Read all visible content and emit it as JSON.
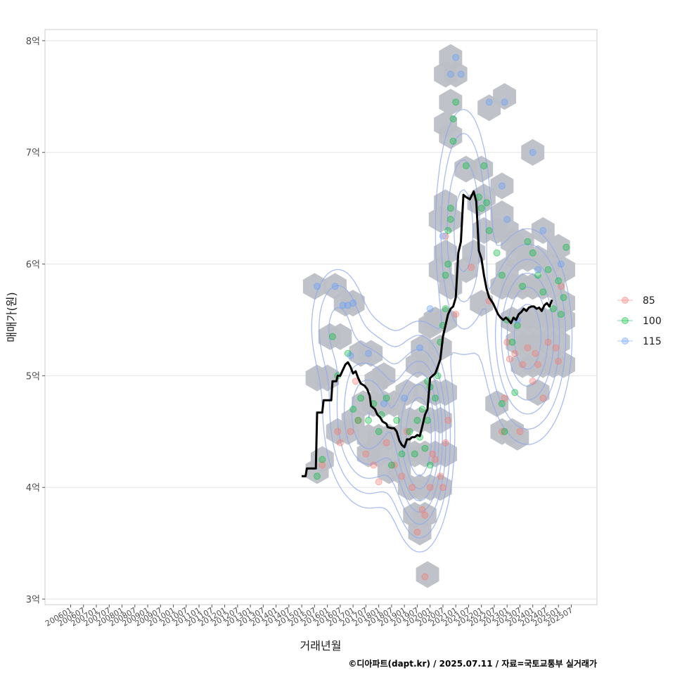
{
  "chart_data": {
    "type": "scatter",
    "title": "",
    "xlabel": "거래년월",
    "ylabel": "매매가(원)",
    "caption": "©디아파트(dapt.kr) / 2025.07.11 / 자료=국토교통부 실거래가",
    "x_ticks": [
      "200601",
      "200607",
      "200701",
      "200707",
      "200801",
      "200807",
      "200901",
      "200907",
      "201001",
      "201007",
      "201101",
      "201107",
      "201201",
      "201207",
      "201301",
      "201307",
      "201401",
      "201407",
      "201501",
      "201507",
      "201601",
      "201607",
      "201701",
      "201707",
      "201801",
      "201807",
      "201901",
      "201907",
      "202001",
      "202007",
      "202101",
      "202107",
      "202201",
      "202207",
      "202301",
      "202307",
      "202401",
      "202407",
      "202501",
      "202507"
    ],
    "y_ticks": [
      {
        "value": 3,
        "label": "3억"
      },
      {
        "value": 4,
        "label": "4억"
      },
      {
        "value": 5,
        "label": "5억"
      },
      {
        "value": 6,
        "label": "6억"
      },
      {
        "value": 7,
        "label": "7억"
      },
      {
        "value": 8,
        "label": "8억"
      }
    ],
    "ylim": [
      2.95,
      8.1
    ],
    "xlim": [
      2005.0,
      2026.5
    ],
    "grid": "horizontal",
    "legend": {
      "position": "right",
      "items": [
        {
          "label": "85",
          "color": "#F8766D"
        },
        {
          "label": "100",
          "color": "#00BA38"
        },
        {
          "label": "115",
          "color": "#619CFF"
        }
      ]
    },
    "hex_color": "#bcc0c6",
    "trend_color": "#000000",
    "contour_color": "#8ea7ec",
    "hex_bins": [
      [
        2015.5,
        5.8
      ],
      [
        2016.3,
        5.8
      ],
      [
        2016.7,
        5.65
      ],
      [
        2017.0,
        5.65
      ],
      [
        2016.1,
        5.35
      ],
      [
        2016.5,
        5.35
      ],
      [
        2017.3,
        5.2
      ],
      [
        2017.7,
        5.2
      ],
      [
        2015.6,
        4.98
      ],
      [
        2016.0,
        4.98
      ],
      [
        2016.4,
        4.5
      ],
      [
        2016.8,
        4.5
      ],
      [
        2017.0,
        4.6
      ],
      [
        2017.4,
        4.75
      ],
      [
        2017.8,
        4.75
      ],
      [
        2018.2,
        4.75
      ],
      [
        2018.6,
        4.75
      ],
      [
        2017.6,
        4.45
      ],
      [
        2018.0,
        4.45
      ],
      [
        2018.4,
        4.45
      ],
      [
        2018.8,
        4.45
      ],
      [
        2018.0,
        4.3
      ],
      [
        2018.4,
        4.15
      ],
      [
        2018.8,
        4.15
      ],
      [
        2018.9,
        4.3
      ],
      [
        2017.6,
        4.3
      ],
      [
        2015.8,
        4.25
      ],
      [
        2015.6,
        4.15
      ],
      [
        2019.2,
        4.6
      ],
      [
        2019.6,
        4.6
      ],
      [
        2020.0,
        4.6
      ],
      [
        2020.4,
        4.6
      ],
      [
        2019.4,
        4.3
      ],
      [
        2019.8,
        4.3
      ],
      [
        2020.2,
        4.3
      ],
      [
        2020.6,
        4.3
      ],
      [
        2019.2,
        4.0
      ],
      [
        2019.6,
        4.0
      ],
      [
        2020.0,
        4.0
      ],
      [
        2020.4,
        4.0
      ],
      [
        2019.4,
        3.75
      ],
      [
        2019.8,
        3.75
      ],
      [
        2019.6,
        3.6
      ],
      [
        2019.9,
        3.22
      ],
      [
        2019.5,
        5.1
      ],
      [
        2019.9,
        5.1
      ],
      [
        2019.7,
        5.25
      ],
      [
        2019.8,
        4.85
      ],
      [
        2020.2,
        4.85
      ],
      [
        2020.6,
        4.85
      ],
      [
        2020.2,
        5.5
      ],
      [
        2020.6,
        5.5
      ],
      [
        2020.0,
        5.45
      ],
      [
        2020.4,
        5.25
      ],
      [
        2020.4,
        5.95
      ],
      [
        2020.6,
        6.1
      ],
      [
        2020.8,
        5.8
      ],
      [
        2020.8,
        6.4
      ],
      [
        2020.4,
        6.4
      ],
      [
        2020.6,
        6.55
      ],
      [
        2020.6,
        7.25
      ],
      [
        2020.8,
        7.15
      ],
      [
        2020.8,
        7.45
      ],
      [
        2020.6,
        7.7
      ],
      [
        2021.0,
        7.7
      ],
      [
        2020.8,
        7.85
      ],
      [
        2021.4,
        6.85
      ],
      [
        2022.0,
        6.85
      ],
      [
        2021.4,
        5.95
      ],
      [
        2021.7,
        6.1
      ],
      [
        2021.9,
        6.55
      ],
      [
        2022.1,
        6.6
      ],
      [
        2022.1,
        6.3
      ],
      [
        2022.3,
        7.4
      ],
      [
        2022.8,
        6.7
      ],
      [
        2022.9,
        7.5
      ],
      [
        2022.8,
        6.45
      ],
      [
        2022.6,
        6.3
      ],
      [
        2023.0,
        6.3
      ],
      [
        2023.2,
        6.2
      ],
      [
        2023.6,
        6.2
      ],
      [
        2023.4,
        6.05
      ],
      [
        2023.8,
        6.05
      ],
      [
        2023.0,
        5.95
      ],
      [
        2023.2,
        5.8
      ],
      [
        2022.8,
        5.8
      ],
      [
        2023.6,
        5.8
      ],
      [
        2024.0,
        5.8
      ],
      [
        2024.4,
        5.8
      ],
      [
        2024.8,
        5.8
      ],
      [
        2023.2,
        5.5
      ],
      [
        2023.6,
        5.5
      ],
      [
        2024.0,
        5.5
      ],
      [
        2024.4,
        5.5
      ],
      [
        2024.8,
        5.5
      ],
      [
        2025.2,
        5.5
      ],
      [
        2023.4,
        5.3
      ],
      [
        2023.8,
        5.3
      ],
      [
        2024.2,
        5.3
      ],
      [
        2024.6,
        5.3
      ],
      [
        2025.0,
        5.3
      ],
      [
        2023.6,
        5.1
      ],
      [
        2024.0,
        5.1
      ],
      [
        2024.4,
        5.1
      ],
      [
        2024.8,
        5.1
      ],
      [
        2025.2,
        5.1
      ],
      [
        2024.2,
        4.85
      ],
      [
        2022.6,
        4.75
      ],
      [
        2022.8,
        4.5
      ],
      [
        2023.2,
        4.5
      ],
      [
        2023.4,
        4.45
      ],
      [
        2024.0,
        7.0
      ],
      [
        2024.4,
        6.3
      ],
      [
        2025.0,
        6.15
      ],
      [
        2025.2,
        5.95
      ],
      [
        2025.2,
        5.65
      ],
      [
        2024.6,
        6.0
      ],
      [
        2024.2,
        6.05
      ],
      [
        2022.0,
        5.65
      ],
      [
        2019.1,
        4.85
      ],
      [
        2018.2,
        5.0
      ],
      [
        2017.9,
        4.95
      ]
    ],
    "points": {
      "85": [
        [
          2015.8,
          4.2
        ],
        [
          2016.5,
          4.4
        ],
        [
          2016.9,
          4.5
        ],
        [
          2017.2,
          4.6
        ],
        [
          2017.5,
          4.3
        ],
        [
          2017.8,
          4.2
        ],
        [
          2018.0,
          4.05
        ],
        [
          2018.3,
          4.4
        ],
        [
          2018.6,
          4.2
        ],
        [
          2018.9,
          4.1
        ],
        [
          2019.1,
          4.5
        ],
        [
          2019.3,
          4.0
        ],
        [
          2019.5,
          3.6
        ],
        [
          2019.7,
          3.8
        ],
        [
          2019.8,
          3.75
        ],
        [
          2019.8,
          3.2
        ],
        [
          2020.0,
          4.0
        ],
        [
          2020.1,
          4.3
        ],
        [
          2020.2,
          4.25
        ],
        [
          2020.4,
          4.1
        ],
        [
          2020.5,
          4.0
        ],
        [
          2020.6,
          4.4
        ],
        [
          2020.7,
          4.6
        ],
        [
          2020.6,
          6.25
        ],
        [
          2021.0,
          5.55
        ],
        [
          2021.6,
          5.97
        ],
        [
          2022.3,
          5.67
        ],
        [
          2022.8,
          4.5
        ],
        [
          2022.9,
          4.8
        ],
        [
          2023.1,
          5.15
        ],
        [
          2023.3,
          5.2
        ],
        [
          2023.5,
          4.5
        ],
        [
          2023.6,
          5.1
        ],
        [
          2023.8,
          5.25
        ],
        [
          2024.0,
          4.95
        ],
        [
          2024.2,
          5.1
        ],
        [
          2024.4,
          4.8
        ],
        [
          2024.6,
          5.3
        ],
        [
          2024.9,
          5.25
        ],
        [
          2025.0,
          5.13
        ],
        [
          2025.1,
          5.8
        ],
        [
          2023.0,
          5.3
        ],
        [
          2024.1,
          5.2
        ],
        [
          2017.1,
          4.95
        ],
        [
          2016.4,
          4.5
        ]
      ],
      "100": [
        [
          2015.6,
          4.1
        ],
        [
          2015.8,
          4.25
        ],
        [
          2016.2,
          5.35
        ],
        [
          2016.4,
          5.0
        ],
        [
          2016.8,
          5.2
        ],
        [
          2017.0,
          4.7
        ],
        [
          2017.3,
          4.8
        ],
        [
          2017.6,
          4.6
        ],
        [
          2017.8,
          4.75
        ],
        [
          2018.0,
          4.5
        ],
        [
          2018.1,
          4.65
        ],
        [
          2018.3,
          4.8
        ],
        [
          2018.5,
          4.2
        ],
        [
          2018.7,
          4.6
        ],
        [
          2018.9,
          4.3
        ],
        [
          2019.2,
          4.5
        ],
        [
          2019.4,
          4.3
        ],
        [
          2019.6,
          4.45
        ],
        [
          2019.7,
          4.7
        ],
        [
          2019.8,
          4.35
        ],
        [
          2019.9,
          4.6
        ],
        [
          2020.0,
          4.9
        ],
        [
          2020.2,
          4.8
        ],
        [
          2020.3,
          5.0
        ],
        [
          2020.4,
          5.3
        ],
        [
          2020.5,
          5.45
        ],
        [
          2020.6,
          5.6
        ],
        [
          2020.6,
          5.9
        ],
        [
          2020.7,
          6.0
        ],
        [
          2020.7,
          6.3
        ],
        [
          2020.8,
          6.5
        ],
        [
          2020.8,
          6.4
        ],
        [
          2020.9,
          7.1
        ],
        [
          2020.9,
          7.3
        ],
        [
          2021.0,
          7.45
        ],
        [
          2021.4,
          6.88
        ],
        [
          2021.9,
          6.6
        ],
        [
          2022.0,
          6.5
        ],
        [
          2022.1,
          6.88
        ],
        [
          2022.2,
          6.55
        ],
        [
          2022.3,
          6.3
        ],
        [
          2022.6,
          6.1
        ],
        [
          2022.8,
          5.9
        ],
        [
          2023.0,
          5.5
        ],
        [
          2023.2,
          5.3
        ],
        [
          2023.4,
          5.45
        ],
        [
          2023.6,
          5.8
        ],
        [
          2023.8,
          6.2
        ],
        [
          2024.0,
          6.1
        ],
        [
          2024.2,
          5.9
        ],
        [
          2024.4,
          5.75
        ],
        [
          2024.6,
          5.95
        ],
        [
          2024.8,
          5.6
        ],
        [
          2025.0,
          5.85
        ],
        [
          2025.2,
          5.7
        ],
        [
          2025.3,
          6.15
        ],
        [
          2025.1,
          5.55
        ],
        [
          2022.8,
          4.75
        ],
        [
          2022.9,
          4.5
        ],
        [
          2023.3,
          4.85
        ],
        [
          2019.9,
          4.95
        ],
        [
          2020.0,
          4.2
        ],
        [
          2019.5,
          4.6
        ],
        [
          2017.2,
          4.6
        ]
      ],
      "115": [
        [
          2015.6,
          5.8
        ],
        [
          2016.3,
          5.8
        ],
        [
          2016.6,
          5.63
        ],
        [
          2016.8,
          5.63
        ],
        [
          2017.0,
          5.65
        ],
        [
          2017.6,
          5.2
        ],
        [
          2018.2,
          4.75
        ],
        [
          2019.6,
          5.25
        ],
        [
          2020.0,
          5.6
        ],
        [
          2020.8,
          7.7
        ],
        [
          2021.0,
          7.85
        ],
        [
          2021.2,
          7.7
        ],
        [
          2022.3,
          7.45
        ],
        [
          2022.9,
          7.45
        ],
        [
          2022.8,
          6.7
        ],
        [
          2023.0,
          6.4
        ],
        [
          2024.0,
          7.0
        ],
        [
          2024.4,
          6.3
        ],
        [
          2024.2,
          5.95
        ],
        [
          2025.1,
          6.0
        ],
        [
          2023.4,
          5.5
        ],
        [
          2020.5,
          6.25
        ],
        [
          2019.0,
          4.8
        ],
        [
          2016.9,
          5.18
        ]
      ]
    },
    "trend": [
      [
        2015.0,
        4.1
      ],
      [
        2015.15,
        4.1
      ],
      [
        2015.2,
        4.17
      ],
      [
        2015.45,
        4.17
      ],
      [
        2015.55,
        4.17
      ],
      [
        2015.6,
        4.67
      ],
      [
        2015.8,
        4.67
      ],
      [
        2015.85,
        4.78
      ],
      [
        2016.15,
        4.78
      ],
      [
        2016.2,
        4.95
      ],
      [
        2016.35,
        4.95
      ],
      [
        2016.4,
        5.0
      ],
      [
        2016.5,
        5.0
      ],
      [
        2016.6,
        5.05
      ],
      [
        2016.7,
        5.1
      ],
      [
        2016.8,
        5.12
      ],
      [
        2016.9,
        5.08
      ],
      [
        2017.0,
        5.02
      ],
      [
        2017.1,
        5.04
      ],
      [
        2017.2,
        4.98
      ],
      [
        2017.3,
        4.93
      ],
      [
        2017.45,
        4.91
      ],
      [
        2017.55,
        4.88
      ],
      [
        2017.65,
        4.82
      ],
      [
        2017.7,
        4.73
      ],
      [
        2017.85,
        4.7
      ],
      [
        2017.95,
        4.65
      ],
      [
        2018.05,
        4.63
      ],
      [
        2018.15,
        4.59
      ],
      [
        2018.3,
        4.57
      ],
      [
        2018.35,
        4.54
      ],
      [
        2018.5,
        4.53
      ],
      [
        2018.6,
        4.53
      ],
      [
        2018.7,
        4.5
      ],
      [
        2018.8,
        4.42
      ],
      [
        2018.9,
        4.38
      ],
      [
        2019.0,
        4.36
      ],
      [
        2019.1,
        4.43
      ],
      [
        2019.2,
        4.43
      ],
      [
        2019.3,
        4.45
      ],
      [
        2019.4,
        4.45
      ],
      [
        2019.5,
        4.47
      ],
      [
        2019.6,
        4.46
      ],
      [
        2019.7,
        4.55
      ],
      [
        2019.8,
        4.65
      ],
      [
        2019.9,
        4.7
      ],
      [
        2020.0,
        4.98
      ],
      [
        2020.1,
        5.0
      ],
      [
        2020.2,
        5.02
      ],
      [
        2020.3,
        5.08
      ],
      [
        2020.4,
        5.15
      ],
      [
        2020.5,
        5.35
      ],
      [
        2020.6,
        5.45
      ],
      [
        2020.7,
        5.55
      ],
      [
        2020.8,
        5.6
      ],
      [
        2020.9,
        5.62
      ],
      [
        2021.0,
        5.7
      ],
      [
        2021.1,
        6.1
      ],
      [
        2021.2,
        6.2
      ],
      [
        2021.3,
        6.62
      ],
      [
        2021.4,
        6.6
      ],
      [
        2021.55,
        6.58
      ],
      [
        2021.7,
        6.65
      ],
      [
        2021.8,
        6.56
      ],
      [
        2021.85,
        6.35
      ],
      [
        2021.9,
        6.12
      ],
      [
        2022.0,
        6.05
      ],
      [
        2022.1,
        5.9
      ],
      [
        2022.2,
        5.78
      ],
      [
        2022.3,
        5.7
      ],
      [
        2022.45,
        5.65
      ],
      [
        2022.55,
        5.6
      ],
      [
        2022.65,
        5.55
      ],
      [
        2022.75,
        5.52
      ],
      [
        2022.85,
        5.5
      ],
      [
        2022.95,
        5.52
      ],
      [
        2023.05,
        5.5
      ],
      [
        2023.15,
        5.47
      ],
      [
        2023.25,
        5.52
      ],
      [
        2023.35,
        5.5
      ],
      [
        2023.45,
        5.55
      ],
      [
        2023.55,
        5.57
      ],
      [
        2023.65,
        5.6
      ],
      [
        2023.75,
        5.58
      ],
      [
        2023.85,
        5.61
      ],
      [
        2023.95,
        5.62
      ],
      [
        2024.05,
        5.62
      ],
      [
        2024.15,
        5.6
      ],
      [
        2024.25,
        5.61
      ],
      [
        2024.35,
        5.58
      ],
      [
        2024.45,
        5.63
      ],
      [
        2024.55,
        5.65
      ],
      [
        2024.65,
        5.62
      ],
      [
        2024.75,
        5.68
      ]
    ],
    "density_centers": [
      {
        "x": 2019.6,
        "y": 4.45,
        "sx": 0.55,
        "sy": 0.42,
        "w": 1.0
      },
      {
        "x": 2017.6,
        "y": 4.65,
        "sx": 0.8,
        "sy": 0.38,
        "w": 0.55
      },
      {
        "x": 2023.8,
        "y": 5.35,
        "sx": 0.75,
        "sy": 0.42,
        "w": 0.7
      },
      {
        "x": 2021.3,
        "y": 6.3,
        "sx": 0.55,
        "sy": 0.55,
        "w": 0.35
      },
      {
        "x": 2016.4,
        "y": 5.45,
        "sx": 0.6,
        "sy": 0.3,
        "w": 0.2
      }
    ],
    "density_levels": [
      0.05,
      0.1,
      0.18,
      0.28,
      0.4,
      0.55,
      0.72
    ]
  }
}
